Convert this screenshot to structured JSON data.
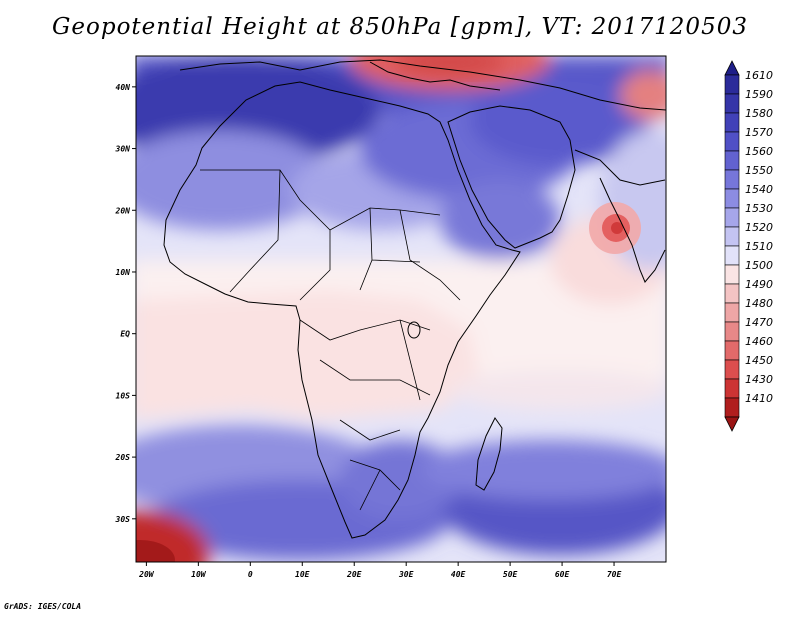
{
  "title": "Geopotential Height at 850hPa [gpm], VT: 2017120503",
  "credit": "GrADS: IGES/COLA",
  "map": {
    "lon_range": [
      -22,
      80
    ],
    "lat_range": [
      -37,
      45
    ],
    "lon_ticks": [
      {
        "value": -20,
        "label": "20W"
      },
      {
        "value": -10,
        "label": "10W"
      },
      {
        "value": 0,
        "label": "0"
      },
      {
        "value": 10,
        "label": "10E"
      },
      {
        "value": 20,
        "label": "20E"
      },
      {
        "value": 30,
        "label": "30E"
      },
      {
        "value": 40,
        "label": "40E"
      },
      {
        "value": 50,
        "label": "50E"
      },
      {
        "value": 60,
        "label": "60E"
      },
      {
        "value": 70,
        "label": "70E"
      }
    ],
    "lat_ticks": [
      {
        "value": 40,
        "label": "40N"
      },
      {
        "value": 30,
        "label": "30N"
      },
      {
        "value": 20,
        "label": "20N"
      },
      {
        "value": 10,
        "label": "10N"
      },
      {
        "value": 0,
        "label": "EQ"
      },
      {
        "value": -10,
        "label": "10S"
      },
      {
        "value": -20,
        "label": "20S"
      },
      {
        "value": -30,
        "label": "30S"
      }
    ]
  },
  "colorbar": {
    "levels": [
      {
        "label": "1610",
        "color": "#2b2b9a"
      },
      {
        "label": "1590",
        "color": "#3535a8"
      },
      {
        "label": "1580",
        "color": "#4141b8"
      },
      {
        "label": "1570",
        "color": "#5050c6"
      },
      {
        "label": "1560",
        "color": "#6262d0"
      },
      {
        "label": "1550",
        "color": "#7676da"
      },
      {
        "label": "1540",
        "color": "#8c8ce2"
      },
      {
        "label": "1530",
        "color": "#a6a6ea"
      },
      {
        "label": "1520",
        "color": "#c4c4f2"
      },
      {
        "label": "1510",
        "color": "#e2e2f9"
      },
      {
        "label": "1500",
        "color": "#fae4e4"
      },
      {
        "label": "1490",
        "color": "#f4c4c4"
      },
      {
        "label": "1480",
        "color": "#eea6a6"
      },
      {
        "label": "1470",
        "color": "#e88888"
      },
      {
        "label": "1460",
        "color": "#e26a6a"
      },
      {
        "label": "1450",
        "color": "#dc4e4e"
      },
      {
        "label": "1430",
        "color": "#cc3434"
      },
      {
        "label": "1410",
        "color": "#b01e1e"
      }
    ],
    "top_color": "#1e1e88",
    "bottom_color": "#9a1414"
  }
}
